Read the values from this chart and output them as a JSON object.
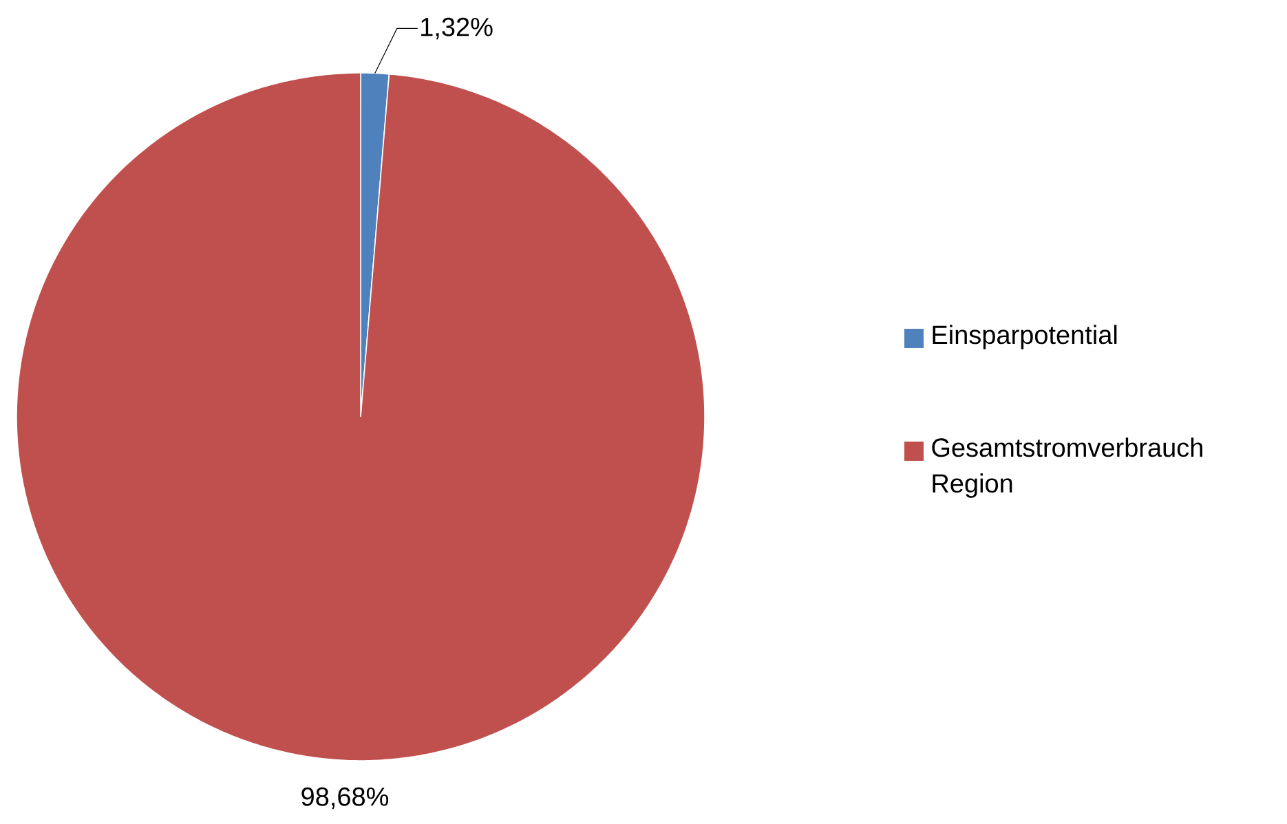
{
  "chart_data": {
    "type": "pie",
    "categories": [
      "Einsparpotential",
      "Gesamtstromverbrauch Region"
    ],
    "values": [
      1.32,
      98.68
    ],
    "colors": [
      "#4f81bd",
      "#c0504d"
    ],
    "value_labels": [
      "1,32%",
      "98,68%"
    ],
    "legend": "right"
  }
}
